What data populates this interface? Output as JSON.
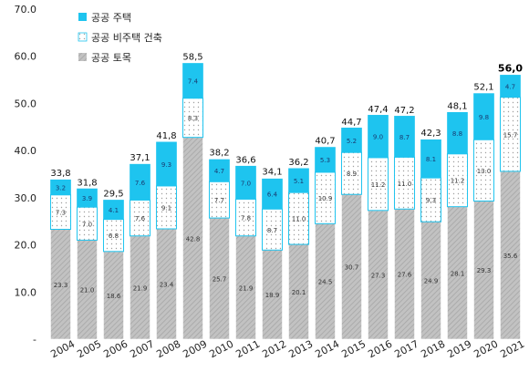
{
  "chart_data": {
    "type": "bar",
    "stacked": true,
    "categories": [
      "2004",
      "2005",
      "2006",
      "2007",
      "2008",
      "2009",
      "2010",
      "2011",
      "2012",
      "2013",
      "2014",
      "2015",
      "2016",
      "2017",
      "2018",
      "2019",
      "2020",
      "2021"
    ],
    "series": [
      {
        "name": "공공 토목",
        "color": "#bdbdbd",
        "pattern": "hatch",
        "values": [
          23.3,
          21.0,
          18.6,
          21.9,
          23.4,
          42.8,
          25.7,
          21.9,
          18.9,
          20.1,
          24.5,
          30.7,
          27.3,
          27.6,
          24.9,
          28.1,
          29.3,
          35.6
        ],
        "labels": [
          "23.3",
          "21.0",
          "18.6",
          "21.9",
          "23.4",
          "42.8",
          "25.7",
          "21.9",
          "18.9",
          "20.1",
          "24.5",
          "30.7",
          "27.3",
          "27.6",
          "24.9",
          "28.1",
          "29.3",
          "35.6"
        ]
      },
      {
        "name": "공공 비주택 건축",
        "color": "#ffffff",
        "pattern": "dots",
        "values": [
          7.3,
          7.0,
          6.8,
          7.6,
          9.1,
          8.3,
          7.7,
          7.8,
          8.7,
          11.0,
          10.9,
          8.9,
          11.2,
          11.0,
          9.3,
          11.2,
          13.0,
          15.7
        ],
        "labels": [
          "7.3",
          "7.0",
          "6.8",
          "7.6",
          "9.1",
          "8.3",
          "7.7",
          "7.8",
          "8.7",
          "11.0",
          "10.9",
          "8.9",
          "11.2",
          "11.0",
          "9.3",
          "11.2",
          "13.0",
          "15.7"
        ]
      },
      {
        "name": "공공 주택",
        "color": "#1ec4ef",
        "pattern": "solid",
        "values": [
          3.2,
          3.9,
          4.1,
          7.6,
          9.3,
          7.4,
          4.7,
          7.0,
          6.4,
          5.1,
          5.3,
          5.2,
          9.0,
          8.7,
          8.1,
          8.8,
          9.8,
          4.7
        ],
        "labels": [
          "3.2",
          "3.9",
          "4.1",
          "7.6",
          "9.3",
          "7.4",
          "4.7",
          "7.0",
          "6.4",
          "5.1",
          "5.3",
          "5.2",
          "9.0",
          "8.7",
          "8.1",
          "8.8",
          "9.8",
          "4.7"
        ]
      }
    ],
    "totals": [
      33.8,
      31.8,
      29.5,
      37.1,
      41.8,
      58.5,
      38.2,
      36.6,
      34.1,
      36.2,
      40.7,
      44.7,
      47.4,
      47.2,
      42.3,
      48.1,
      52.1,
      56.0
    ],
    "total_labels": [
      "33,8",
      "31,8",
      "29,5",
      "37,1",
      "41,8",
      "58,5",
      "38,2",
      "36,6",
      "34,1",
      "36,2",
      "40,7",
      "44,7",
      "47,4",
      "47,2",
      "42,3",
      "48,1",
      "52,1",
      "56,0"
    ],
    "y_ticks": [
      0,
      10,
      20,
      30,
      40,
      50,
      60,
      70
    ],
    "y_tick_labels": [
      "-",
      "10.0",
      "20.0",
      "30.0",
      "40.0",
      "50.0",
      "60.0",
      "70.0"
    ],
    "ylim": [
      0,
      70
    ],
    "grid": false,
    "legend": [
      "공공 주택",
      "공공 비주택 건축",
      "공공 토목"
    ],
    "legend_position": "top-left"
  }
}
